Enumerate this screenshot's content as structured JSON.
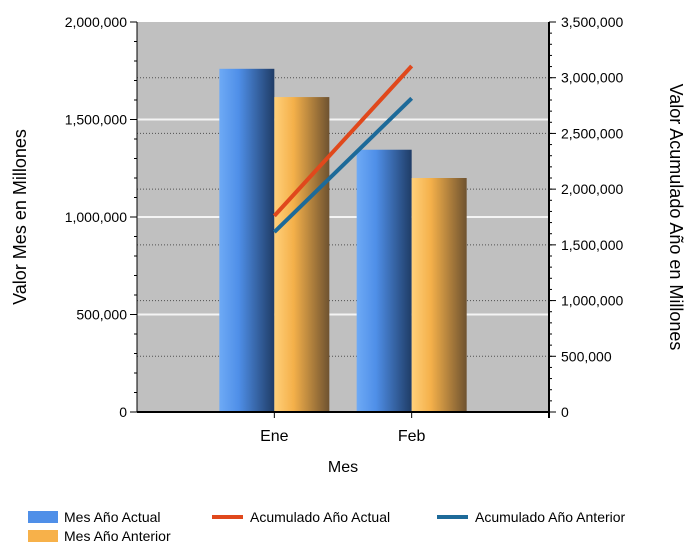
{
  "chart_data": {
    "type": "bar",
    "categories": [
      "Ene",
      "Feb"
    ],
    "xlabel": "Mes",
    "ylabel": "Valor Mes en Millones",
    "y2label": "Valor Acumulado Año en Millones",
    "ylim": [
      0,
      2000000
    ],
    "y2lim": [
      0,
      3500000
    ],
    "yticks": [
      "0",
      "500,000",
      "1,000,000",
      "1,500,000",
      "2,000,000"
    ],
    "y2ticks": [
      "0",
      "500,000",
      "1,000,000",
      "1,500,000",
      "2,000,000",
      "2,500,000",
      "3,000,000",
      "3,500,000"
    ],
    "grid": true,
    "legend_position": "bottom",
    "series": [
      {
        "name": "Mes Año Actual",
        "kind": "bar",
        "axis": "left",
        "color": "#4f8fe8",
        "values": [
          1760000,
          1345000
        ]
      },
      {
        "name": "Mes Año Anterior",
        "kind": "bar",
        "axis": "left",
        "color": "#f7b14a",
        "values": [
          1615000,
          1200000
        ]
      },
      {
        "name": "Acumulado Año Actual",
        "kind": "line",
        "axis": "right",
        "color": "#e0481c",
        "values": [
          1760000,
          3105000
        ]
      },
      {
        "name": "Acumulado Año Anterior",
        "kind": "line",
        "axis": "right",
        "color": "#1d6a99",
        "values": [
          1615000,
          2815000
        ]
      }
    ],
    "plot_background": "#c0c0c0"
  }
}
